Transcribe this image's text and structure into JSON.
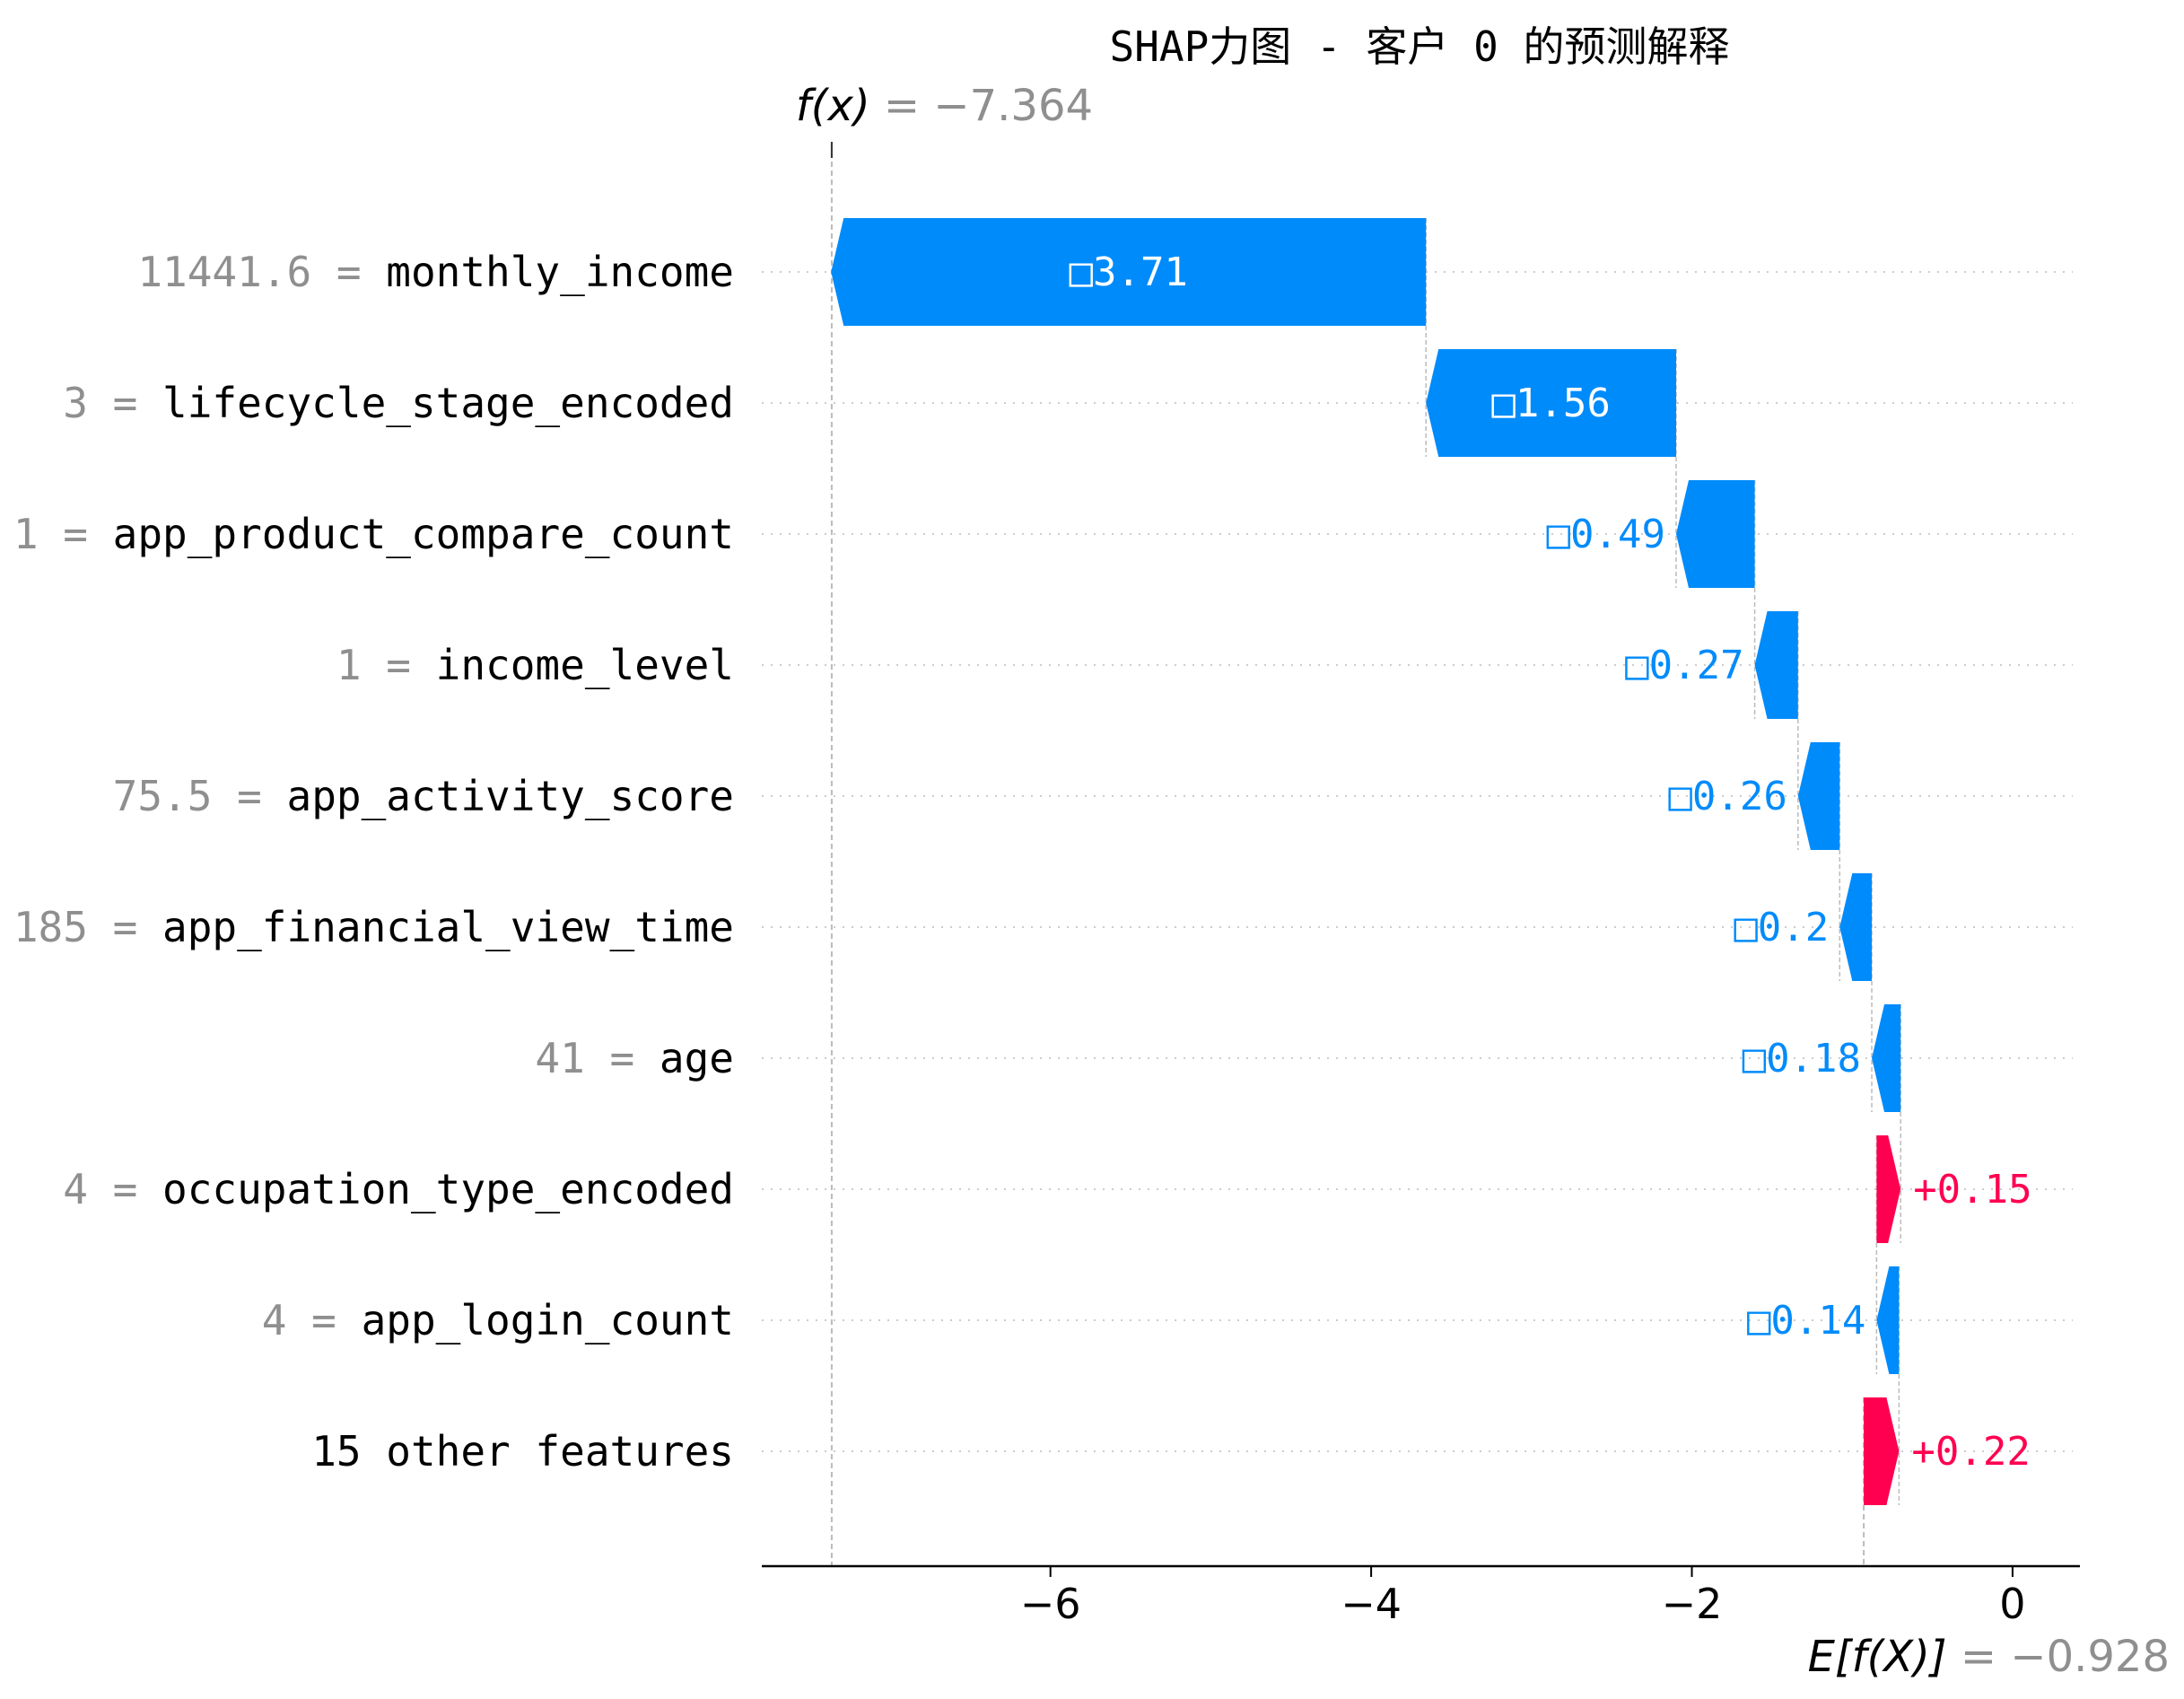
{
  "chart_data": {
    "type": "waterfall",
    "title": "SHAP力图 - 客户 0 的预测解释",
    "fx": {
      "prefix": "f(x)",
      "equals": " = ",
      "value": "−7.364",
      "number": -7.364
    },
    "efx": {
      "prefix": "E[f(X)]",
      "equals": " = ",
      "value": "−0.928",
      "number": -0.928
    },
    "xlim": [
      -7.8,
      0.42
    ],
    "xticks": [
      {
        "value": -6,
        "label": "−6"
      },
      {
        "value": -4,
        "label": "−4"
      },
      {
        "value": -2,
        "label": "−2"
      },
      {
        "value": 0,
        "label": "0"
      }
    ],
    "features": [
      {
        "name": "monthly_income",
        "value": "11441.6",
        "shap": -3.71,
        "label": "□3.71"
      },
      {
        "name": "lifecycle_stage_encoded",
        "value": "3",
        "shap": -1.56,
        "label": "□1.56"
      },
      {
        "name": "app_product_compare_count",
        "value": "1",
        "shap": -0.49,
        "label": "□0.49"
      },
      {
        "name": "income_level",
        "value": "1",
        "shap": -0.27,
        "label": "□0.27"
      },
      {
        "name": "app_activity_score",
        "value": "75.5",
        "shap": -0.26,
        "label": "□0.26"
      },
      {
        "name": "app_financial_view_time",
        "value": "185",
        "shap": -0.2,
        "label": "□0.2"
      },
      {
        "name": "age",
        "value": "41",
        "shap": -0.18,
        "label": "□0.18"
      },
      {
        "name": "occupation_type_encoded",
        "value": "4",
        "shap": 0.15,
        "label": "+0.15"
      },
      {
        "name": "app_login_count",
        "value": "4",
        "shap": -0.14,
        "label": "□0.14"
      },
      {
        "name": "15 other features",
        "value": "",
        "shap": 0.22,
        "label": "+0.22"
      }
    ],
    "colors": {
      "negative": "#008bfb",
      "positive": "#ff0051",
      "muted": "#8f8f8f"
    }
  }
}
